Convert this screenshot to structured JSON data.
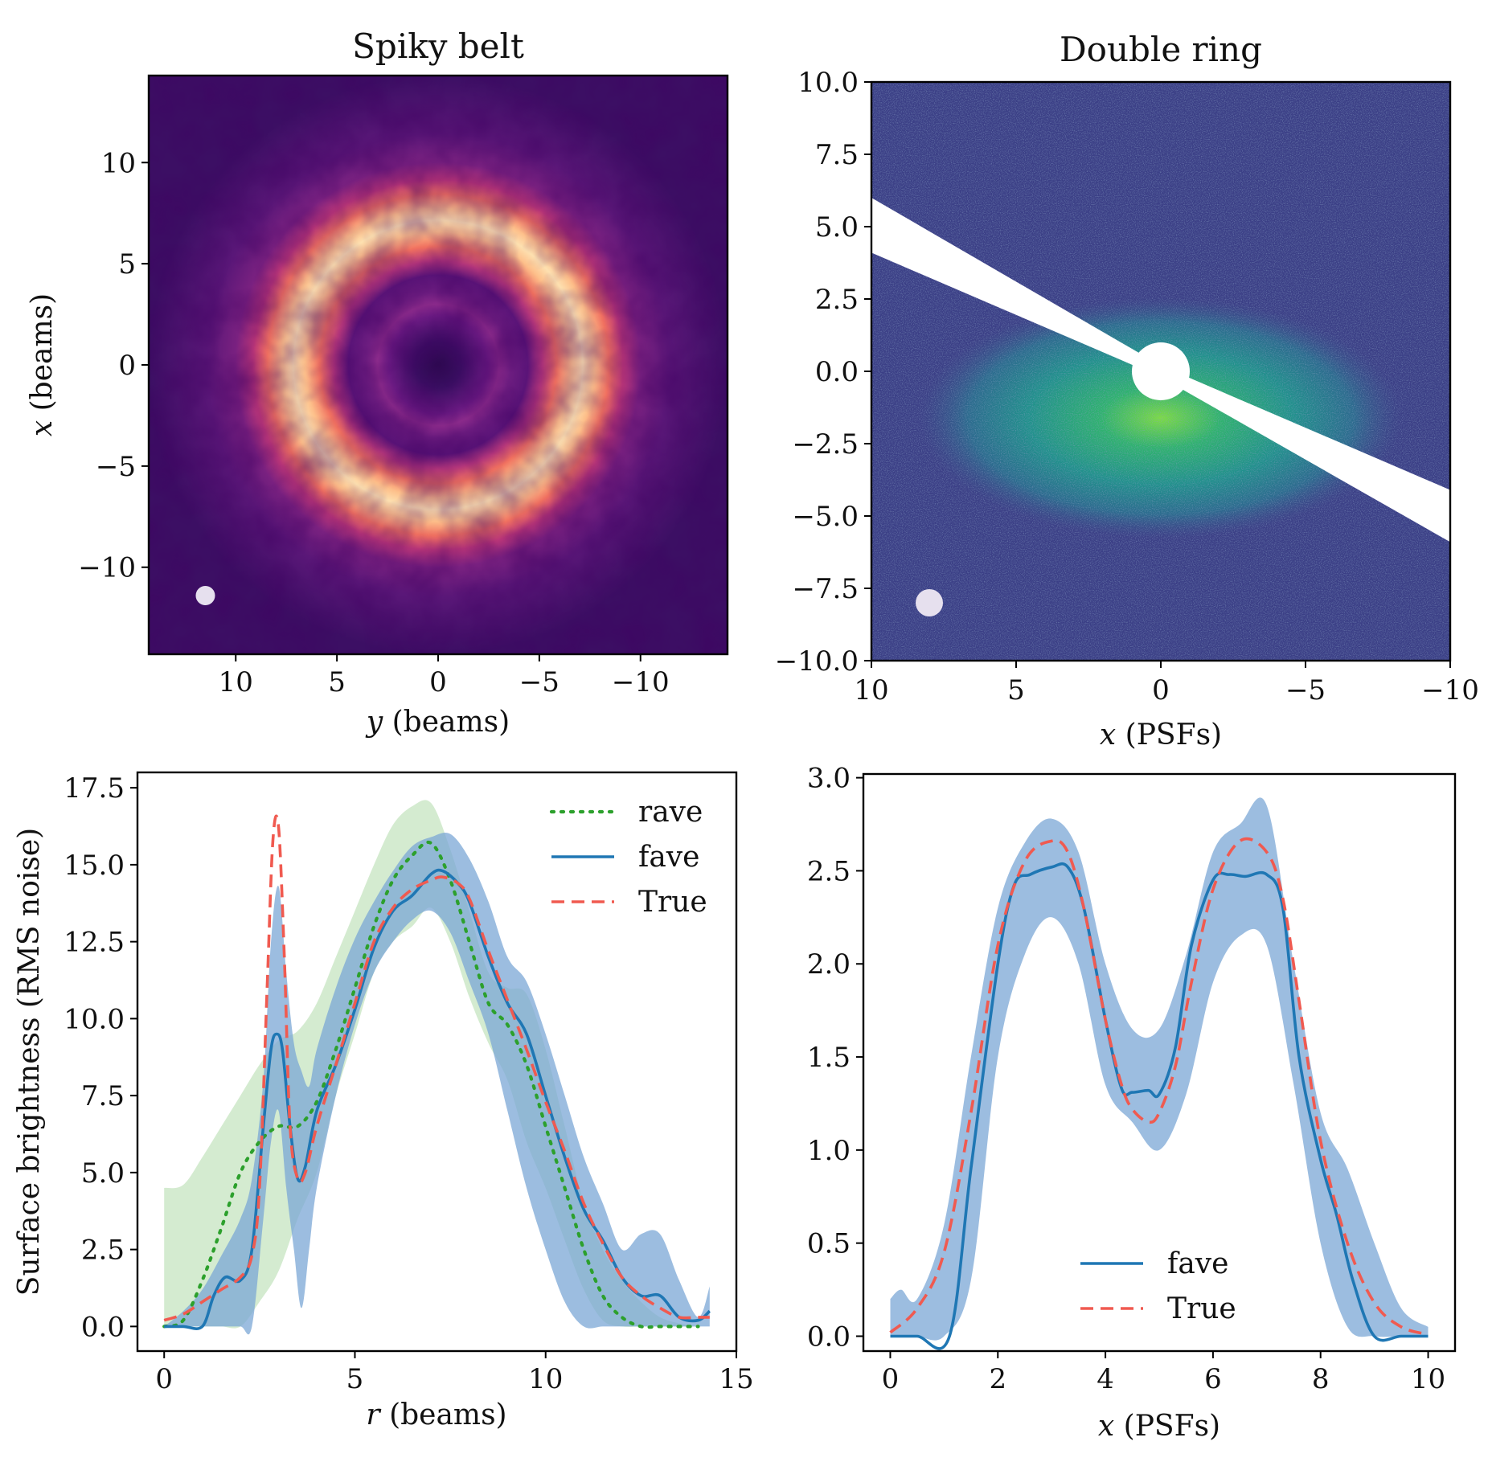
{
  "colors": {
    "rave": "#2ca02c",
    "rave_band": "#b8deb0",
    "fave": "#1f77b4",
    "fave_band": "#7ba7d6",
    "true": "#f05a50",
    "beam": "#e6e0ee"
  },
  "chart_data": [
    {
      "id": "spiky-belt-image",
      "type": "heatmap",
      "title": "Spiky belt",
      "xlabel_var": "y",
      "xlabel_unit": "(beams)",
      "ylabel_var": "x",
      "ylabel_unit": "(beams)",
      "xlim": [
        14.3,
        -14.3
      ],
      "ylim": [
        -14.3,
        14.3
      ],
      "xticks": [
        10,
        5,
        0,
        -5,
        -10
      ],
      "xtick_labels": [
        "10",
        "5",
        "0",
        "−5",
        "−10"
      ],
      "yticks": [
        10,
        5,
        0,
        -5,
        -10
      ],
      "ytick_labels": [
        "10",
        "5",
        "0",
        "−5",
        "−10"
      ],
      "colormap": "magma",
      "features": {
        "outer_ring_radius": 7,
        "inner_ring_radius": 3,
        "beam_marker_center": [
          11.5,
          -11.4
        ]
      }
    },
    {
      "id": "double-ring-image",
      "type": "heatmap",
      "title": "Double ring",
      "xlabel_var": "x",
      "xlabel_unit": "(PSFs)",
      "xlim": [
        10,
        -10
      ],
      "ylim": [
        -10,
        10
      ],
      "xticks": [
        10,
        5,
        0,
        -5,
        -10
      ],
      "xtick_labels": [
        "10",
        "5",
        "0",
        "−5",
        "−10"
      ],
      "yticks": [
        10,
        7.5,
        5,
        2.5,
        0,
        -2.5,
        -5,
        -7.5,
        -10
      ],
      "ytick_labels": [
        "10.0",
        "7.5",
        "5.0",
        "2.5",
        "0.0",
        "−2.5",
        "−5.0",
        "−7.5",
        "−10.0"
      ],
      "colormap": "viridis",
      "features": {
        "masked_wedge": "white",
        "coronagraph_radius": 1,
        "beam_marker_center": [
          8,
          -8
        ]
      }
    },
    {
      "id": "spiky-belt-profile",
      "type": "line",
      "xlabel_var": "r",
      "xlabel_unit": "(beams)",
      "ylabel": "Surface brightness (RMS noise)",
      "xlim": [
        -0.7,
        15
      ],
      "ylim": [
        -0.8,
        18
      ],
      "xticks": [
        0,
        5,
        10,
        15
      ],
      "yticks": [
        0,
        2.5,
        5,
        7.5,
        10,
        12.5,
        15,
        17.5
      ],
      "ytick_labels": [
        "0.0",
        "2.5",
        "5.0",
        "7.5",
        "10.0",
        "12.5",
        "15.0",
        "17.5"
      ],
      "legend_position": "upper right",
      "bands": [
        {
          "of": "rave",
          "x": [
            0,
            0.5,
            1,
            1.5,
            2,
            2.5,
            3,
            3.5,
            4,
            4.5,
            5,
            5.5,
            6,
            6.5,
            7,
            7.5,
            8,
            8.5,
            9,
            9.5,
            10,
            10.5,
            11,
            11.5,
            12,
            12.5,
            13,
            13.5,
            14
          ],
          "upper": [
            4.5,
            4.6,
            5.5,
            6.5,
            7.5,
            8.5,
            9.3,
            9.6,
            10.5,
            12,
            13.5,
            15,
            16.3,
            16.9,
            17.0,
            15.5,
            13.5,
            11.5,
            11.0,
            10.8,
            9.0,
            6.5,
            4.0,
            2.5,
            1.5,
            0.8,
            0.3,
            0.1,
            0
          ],
          "lower": [
            0,
            0,
            0,
            0,
            0,
            0.8,
            1.8,
            3.5,
            5.0,
            7.5,
            9.5,
            11.5,
            12.5,
            13.0,
            13.6,
            12.5,
            10.7,
            9.2,
            8.0,
            6.0,
            4.5,
            2.8,
            1.2,
            0.2,
            0,
            0,
            0,
            0,
            0
          ]
        },
        {
          "of": "fave",
          "x": [
            0,
            0.5,
            1,
            1.5,
            2,
            2.3,
            2.6,
            2.8,
            3.0,
            3.2,
            3.4,
            3.6,
            3.8,
            4,
            4.5,
            5,
            5.5,
            6,
            6.5,
            7,
            7.5,
            8,
            8.5,
            9,
            9.5,
            10,
            10.5,
            11,
            11.5,
            12,
            12.5,
            13,
            13.5,
            14,
            14.3
          ],
          "upper": [
            0,
            0.5,
            1.2,
            2.3,
            3.5,
            4.8,
            8.0,
            12.5,
            14.3,
            11.5,
            9.2,
            8.3,
            7.8,
            9.0,
            11.0,
            12.6,
            13.8,
            14.8,
            15.6,
            15.9,
            16.0,
            15.2,
            13.8,
            12.0,
            11.2,
            9.5,
            7.5,
            5.5,
            4.0,
            2.5,
            3.0,
            3.0,
            1.5,
            0.3,
            1.3
          ],
          "lower": [
            0,
            0,
            0,
            0,
            0,
            0,
            3.5,
            6.0,
            7.0,
            4.5,
            2.5,
            0.6,
            2.5,
            4.5,
            7.5,
            9.8,
            11.5,
            12.5,
            13.2,
            13.5,
            12.8,
            11.2,
            9.5,
            7.0,
            4.5,
            2.5,
            0.8,
            0.0,
            0,
            0,
            0,
            0,
            0,
            0,
            0
          ]
        }
      ],
      "series": [
        {
          "name": "rave",
          "style": "dotted",
          "x": [
            0,
            0.5,
            1,
            1.5,
            2,
            2.5,
            3,
            3.5,
            4,
            4.5,
            5,
            5.5,
            6,
            6.5,
            7,
            7.5,
            8,
            8.5,
            9,
            9.5,
            10,
            10.5,
            11,
            11.5,
            12,
            12.5,
            13,
            13.5,
            14
          ],
          "y": [
            0,
            0.2,
            1.5,
            3.2,
            5.0,
            6.0,
            6.5,
            6.5,
            7.3,
            9.0,
            11.0,
            13.0,
            14.5,
            15.3,
            15.7,
            14.5,
            12.5,
            10.5,
            9.8,
            8.5,
            6.5,
            4.5,
            2.5,
            1.0,
            0.3,
            0,
            0,
            0,
            0
          ]
        },
        {
          "name": "fave",
          "style": "solid",
          "x": [
            0,
            0.5,
            1.0,
            1.3,
            1.6,
            2.0,
            2.3,
            2.6,
            2.8,
            2.95,
            3.1,
            3.3,
            3.5,
            3.7,
            4,
            4.5,
            5,
            5.5,
            6,
            6.5,
            7,
            7.3,
            7.7,
            8,
            8.5,
            9,
            9.5,
            10,
            10.5,
            11,
            11.5,
            12,
            12.5,
            13,
            13.5,
            14,
            14.3
          ],
          "y": [
            0,
            0,
            0,
            1.0,
            1.6,
            1.5,
            2.5,
            6.5,
            9.0,
            9.5,
            9.0,
            6.5,
            4.8,
            5.2,
            7.0,
            8.5,
            10.3,
            12.3,
            13.5,
            14.0,
            14.7,
            14.8,
            14.4,
            13.8,
            12.0,
            10.5,
            9.5,
            7.5,
            5.5,
            3.8,
            2.8,
            1.6,
            1.0,
            1.0,
            0.3,
            0.2,
            0.5
          ]
        },
        {
          "name": "True",
          "style": "dashed",
          "x": [
            0,
            0.5,
            1,
            1.5,
            2,
            2.3,
            2.5,
            2.7,
            2.85,
            3.0,
            3.15,
            3.3,
            3.5,
            3.7,
            4,
            4.5,
            5,
            5.5,
            6,
            6.5,
            7,
            7.3,
            7.7,
            8,
            8.5,
            9,
            9.5,
            10,
            10.5,
            11,
            11.5,
            12,
            12.5,
            13,
            13.5,
            14,
            14.3
          ],
          "y": [
            0.2,
            0.4,
            0.8,
            1.2,
            1.6,
            2.3,
            4.5,
            11.0,
            15.8,
            16.2,
            12.0,
            6.5,
            4.8,
            5.0,
            6.5,
            8.5,
            10.5,
            12.5,
            13.6,
            14.2,
            14.5,
            14.6,
            14.4,
            13.9,
            12.2,
            10.6,
            9.0,
            7.3,
            5.7,
            4.0,
            2.7,
            1.6,
            1.0,
            0.6,
            0.3,
            0.3,
            0.3
          ]
        }
      ]
    },
    {
      "id": "double-ring-profile",
      "type": "line",
      "xlabel_var": "x",
      "xlabel_unit": "(PSFs)",
      "xlim": [
        -0.5,
        10.5
      ],
      "ylim": [
        -0.08,
        3.02
      ],
      "xticks": [
        0,
        2,
        4,
        6,
        8,
        10
      ],
      "yticks": [
        0,
        0.5,
        1,
        1.5,
        2,
        2.5,
        3
      ],
      "ytick_labels": [
        "0.0",
        "0.5",
        "1.0",
        "1.5",
        "2.0",
        "2.5",
        "3.0"
      ],
      "legend_position": "lower center",
      "bands": [
        {
          "of": "fave",
          "x": [
            0,
            0.2,
            0.5,
            1,
            1.5,
            2,
            2.5,
            3,
            3.5,
            4,
            4.5,
            5,
            5.5,
            6,
            6.5,
            7,
            7.5,
            8,
            8.5,
            9,
            9.5,
            10
          ],
          "upper": [
            0.2,
            0.25,
            0.2,
            0.6,
            1.5,
            2.3,
            2.65,
            2.78,
            2.6,
            2.0,
            1.65,
            1.65,
            2.05,
            2.6,
            2.75,
            2.85,
            2.0,
            1.2,
            0.9,
            0.5,
            0.15,
            0.05
          ],
          "lower": [
            0,
            0,
            0,
            0,
            0.3,
            1.5,
            2.05,
            2.25,
            2.0,
            1.35,
            1.15,
            1.0,
            1.3,
            1.9,
            2.15,
            2.1,
            1.35,
            0.5,
            0.05,
            0,
            0,
            0
          ]
        }
      ],
      "series": [
        {
          "name": "fave",
          "style": "solid",
          "x": [
            0,
            0.5,
            1.1,
            1.5,
            2,
            2.3,
            2.6,
            3,
            3.3,
            3.6,
            4,
            4.3,
            4.5,
            4.8,
            5.0,
            5.3,
            5.6,
            6,
            6.3,
            6.6,
            7,
            7.3,
            7.6,
            8,
            8.3,
            8.6,
            9,
            9.5,
            10
          ],
          "y": [
            0,
            0,
            0,
            0.9,
            2.0,
            2.42,
            2.48,
            2.52,
            2.52,
            2.3,
            1.7,
            1.33,
            1.31,
            1.32,
            1.3,
            1.55,
            2.1,
            2.45,
            2.48,
            2.47,
            2.48,
            2.3,
            1.5,
            0.95,
            0.65,
            0.3,
            0,
            0,
            0
          ]
        },
        {
          "name": "True",
          "style": "dashed",
          "x": [
            0,
            0.5,
            1,
            1.5,
            2,
            2.5,
            3,
            3.3,
            3.6,
            4,
            4.3,
            4.5,
            4.8,
            5.0,
            5.3,
            5.6,
            6,
            6.5,
            7,
            7.3,
            7.6,
            8,
            8.5,
            9,
            9.5,
            10
          ],
          "y": [
            0.02,
            0.15,
            0.45,
            1.2,
            2.1,
            2.55,
            2.66,
            2.6,
            2.3,
            1.7,
            1.35,
            1.22,
            1.15,
            1.2,
            1.45,
            1.9,
            2.4,
            2.66,
            2.6,
            2.35,
            1.8,
            1.05,
            0.5,
            0.18,
            0.05,
            0.01
          ]
        }
      ]
    }
  ]
}
